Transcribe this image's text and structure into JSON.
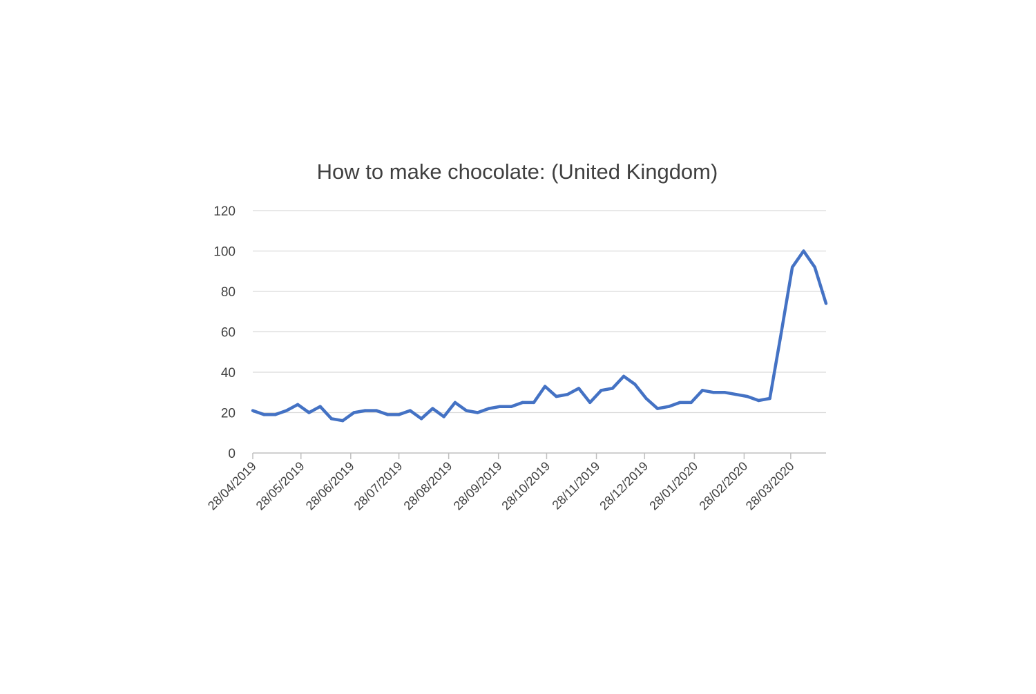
{
  "chart_data": {
    "type": "line",
    "title": "How to make chocolate: (United Kingdom)",
    "xlabel": "",
    "ylabel": "",
    "ylim": [
      0,
      120
    ],
    "yticks": [
      0,
      20,
      40,
      60,
      80,
      100,
      120
    ],
    "grid": true,
    "legend": "none",
    "line_color": "#4472C4",
    "x_tick_labels": [
      "28/04/2019",
      "28/05/2019",
      "28/06/2019",
      "28/07/2019",
      "28/08/2019",
      "28/09/2019",
      "28/10/2019",
      "28/11/2019",
      "28/12/2019",
      "28/01/2020",
      "28/02/2020",
      "28/03/2020"
    ],
    "x": [
      "2019-04-28",
      "2019-05-05",
      "2019-05-12",
      "2019-05-19",
      "2019-05-26",
      "2019-06-02",
      "2019-06-09",
      "2019-06-16",
      "2019-06-23",
      "2019-06-30",
      "2019-07-07",
      "2019-07-14",
      "2019-07-21",
      "2019-07-28",
      "2019-08-04",
      "2019-08-11",
      "2019-08-18",
      "2019-08-25",
      "2019-09-01",
      "2019-09-08",
      "2019-09-15",
      "2019-09-22",
      "2019-09-29",
      "2019-10-06",
      "2019-10-13",
      "2019-10-20",
      "2019-10-27",
      "2019-11-03",
      "2019-11-10",
      "2019-11-17",
      "2019-11-24",
      "2019-12-01",
      "2019-12-08",
      "2019-12-15",
      "2019-12-22",
      "2019-12-29",
      "2020-01-05",
      "2020-01-12",
      "2020-01-19",
      "2020-01-26",
      "2020-02-02",
      "2020-02-09",
      "2020-02-16",
      "2020-02-23",
      "2020-03-01",
      "2020-03-08",
      "2020-03-15",
      "2020-03-22",
      "2020-03-29",
      "2020-04-05",
      "2020-04-12",
      "2020-04-19"
    ],
    "series": [
      {
        "values": [
          21,
          19,
          19,
          21,
          24,
          20,
          23,
          17,
          16,
          20,
          21,
          21,
          19,
          19,
          21,
          17,
          22,
          18,
          25,
          21,
          20,
          22,
          23,
          23,
          25,
          25,
          33,
          28,
          29,
          32,
          25,
          31,
          32,
          38,
          34,
          27,
          22,
          23,
          25,
          25,
          31,
          30,
          30,
          29,
          28,
          26,
          27,
          59,
          92,
          100,
          92,
          74
        ]
      }
    ]
  }
}
